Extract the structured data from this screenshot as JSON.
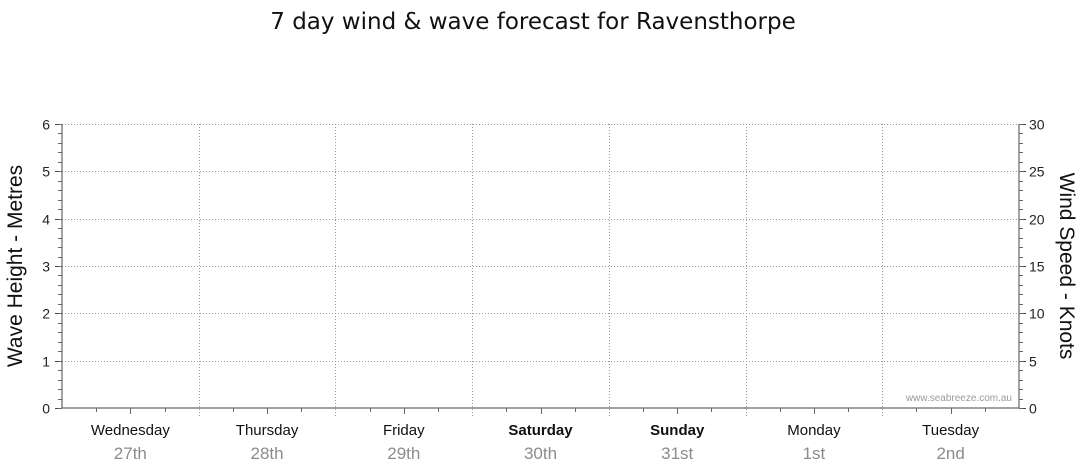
{
  "chart_data": {
    "type": "line",
    "title": "7 day wind & wave forecast for Ravensthorpe",
    "ylabel_left": "Wave Height - Metres",
    "ylabel_right": "Wind Speed - Knots",
    "ylim_left": [
      0,
      6
    ],
    "ylim_right": [
      0,
      30
    ],
    "yticks_left": [
      0,
      1,
      2,
      3,
      4,
      5,
      6
    ],
    "yticks_right": [
      0,
      5,
      10,
      15,
      20,
      25,
      30
    ],
    "grid": true,
    "days": [
      {
        "name": "Wednesday",
        "date": "27th",
        "bold": false
      },
      {
        "name": "Thursday",
        "date": "28th",
        "bold": false
      },
      {
        "name": "Friday",
        "date": "29th",
        "bold": false
      },
      {
        "name": "Saturday",
        "date": "30th",
        "bold": true
      },
      {
        "name": "Sunday",
        "date": "31st",
        "bold": true
      },
      {
        "name": "Monday",
        "date": "1st",
        "bold": false
      },
      {
        "name": "Tuesday",
        "date": "2nd",
        "bold": false
      }
    ],
    "series": [],
    "watermark": "www.seabreeze.com.au"
  }
}
